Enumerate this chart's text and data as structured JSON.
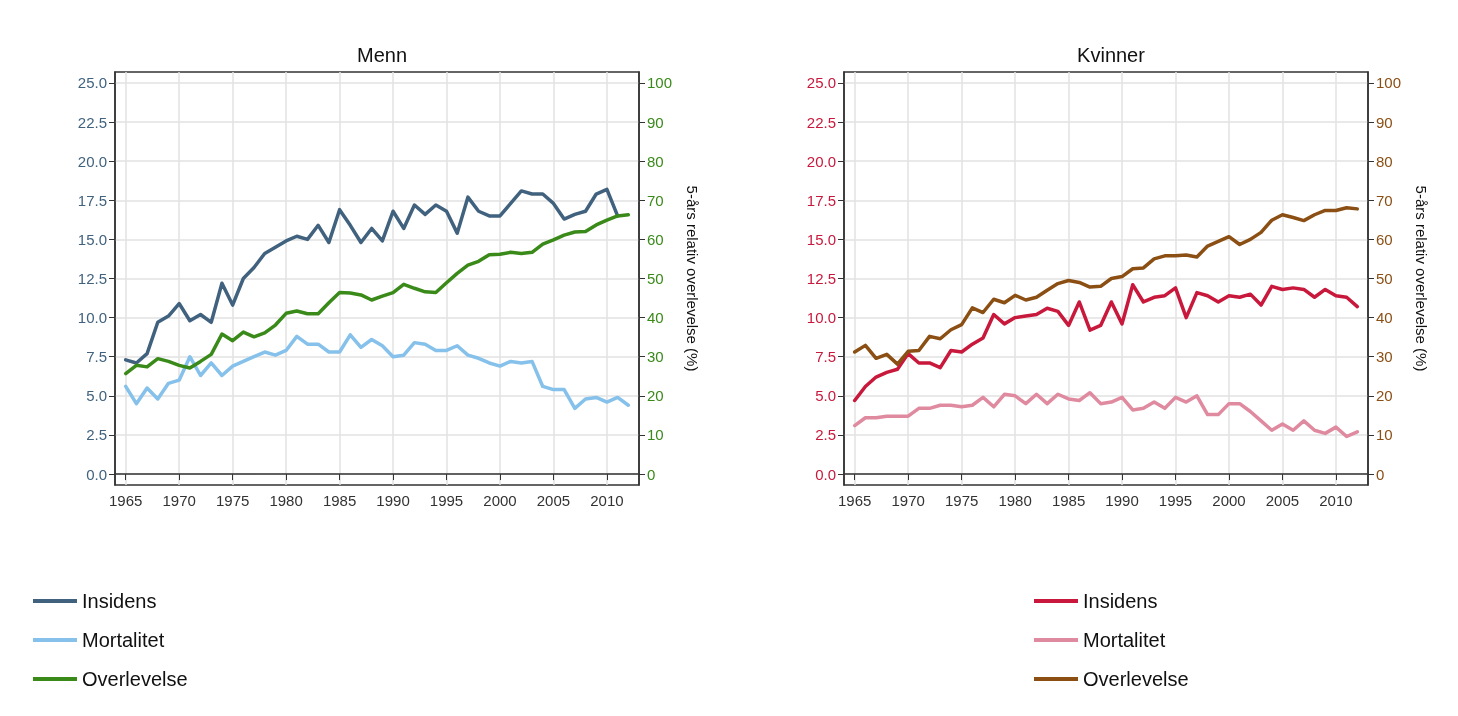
{
  "chart_data": [
    {
      "type": "line",
      "title": "Menn",
      "y2label": "5-års relativ overlevelse (%)",
      "x": [
        1965,
        1966,
        1967,
        1968,
        1969,
        1970,
        1971,
        1972,
        1973,
        1974,
        1975,
        1976,
        1977,
        1978,
        1979,
        1980,
        1981,
        1982,
        1983,
        1984,
        1985,
        1986,
        1987,
        1988,
        1989,
        1990,
        1991,
        1992,
        1993,
        1994,
        1995,
        1996,
        1997,
        1998,
        1999,
        2000,
        2001,
        2002,
        2003,
        2004,
        2005,
        2006,
        2007,
        2008,
        2009,
        2010,
        2011,
        2012
      ],
      "series": [
        {
          "name": "Insidens",
          "color": "#41627e",
          "values": [
            7.3,
            7.1,
            7.7,
            9.7,
            10.1,
            10.9,
            9.8,
            10.2,
            9.7,
            12.2,
            10.8,
            12.5,
            13.2,
            14.1,
            14.5,
            14.9,
            15.2,
            15.0,
            15.9,
            14.8,
            16.9,
            15.9,
            14.8,
            15.7,
            14.9,
            16.8,
            15.7,
            17.2,
            16.6,
            17.2,
            16.8,
            15.4,
            17.7,
            16.8,
            16.5,
            16.5,
            17.3,
            18.1,
            17.9,
            17.9,
            17.3,
            16.3,
            16.6,
            16.8,
            17.9,
            18.2,
            16.5,
            null
          ]
        },
        {
          "name": "Mortalitet",
          "color": "#85c1ea",
          "values": [
            5.6,
            4.5,
            5.5,
            4.8,
            5.8,
            6.0,
            7.5,
            6.3,
            7.1,
            6.3,
            6.9,
            7.2,
            7.5,
            7.8,
            7.6,
            7.9,
            8.8,
            8.3,
            8.3,
            7.8,
            7.8,
            8.9,
            8.1,
            8.6,
            8.2,
            7.5,
            7.6,
            8.4,
            8.3,
            7.9,
            7.9,
            8.2,
            7.6,
            7.4,
            7.1,
            6.9,
            7.2,
            7.1,
            7.2,
            5.6,
            5.4,
            5.4,
            4.2,
            4.8,
            4.9,
            4.6,
            4.9,
            4.4
          ]
        },
        {
          "name": "Overlevelse",
          "color": "#3a8a1a",
          "axis": "y2",
          "values": [
            25.7,
            27.8,
            27.4,
            29.5,
            28.8,
            27.8,
            27.1,
            28.8,
            30.6,
            35.8,
            34.1,
            36.3,
            35.1,
            36.1,
            38.1,
            41.1,
            41.7,
            41.0,
            41.0,
            43.8,
            46.4,
            46.3,
            45.8,
            44.5,
            45.5,
            46.4,
            48.5,
            47.5,
            46.6,
            46.4,
            48.9,
            51.3,
            53.4,
            54.4,
            56.1,
            56.2,
            56.7,
            56.4,
            56.7,
            58.8,
            59.9,
            61.1,
            61.9,
            62.0,
            63.7,
            64.9,
            66.0,
            66.3
          ]
        }
      ],
      "xlim": [
        1964,
        2013
      ],
      "xticks": [
        1965,
        1970,
        1975,
        1980,
        1985,
        1990,
        1995,
        2000,
        2005,
        2010
      ],
      "ylim": [
        -0.7,
        25.7
      ],
      "yticks": [
        {
          "value": 0,
          "label": "0.0"
        },
        {
          "value": 2.5,
          "label": "2.5"
        },
        {
          "value": 5,
          "label": "5.0"
        },
        {
          "value": 7.5,
          "label": "7.5"
        },
        {
          "value": 10,
          "label": "10.0"
        },
        {
          "value": 12.5,
          "label": "12.5"
        },
        {
          "value": 15,
          "label": "15.0"
        },
        {
          "value": 17.5,
          "label": "17.5"
        },
        {
          "value": 20,
          "label": "20.0"
        },
        {
          "value": 22.5,
          "label": "22.5"
        },
        {
          "value": 25,
          "label": "25.0"
        }
      ],
      "y2lim": [
        -2.8,
        102.8
      ],
      "y2ticks": [
        0,
        10,
        20,
        30,
        40,
        50,
        60,
        70,
        80,
        90,
        100
      ],
      "grid": true,
      "legend": "bottom left",
      "marker": "none",
      "line_style": "solid"
    },
    {
      "type": "line",
      "title": "Kvinner",
      "y2label": "5-års relativ overlevelse (%)",
      "x": [
        1965,
        1966,
        1967,
        1968,
        1969,
        1970,
        1971,
        1972,
        1973,
        1974,
        1975,
        1976,
        1977,
        1978,
        1979,
        1980,
        1981,
        1982,
        1983,
        1984,
        1985,
        1986,
        1987,
        1988,
        1989,
        1990,
        1991,
        1992,
        1993,
        1994,
        1995,
        1996,
        1997,
        1998,
        1999,
        2000,
        2001,
        2002,
        2003,
        2004,
        2005,
        2006,
        2007,
        2008,
        2009,
        2010,
        2011,
        2012
      ],
      "series": [
        {
          "name": "Insidens",
          "color": "#c8193c",
          "values": [
            4.7,
            5.6,
            6.2,
            6.5,
            6.7,
            7.7,
            7.1,
            7.1,
            6.8,
            7.9,
            7.8,
            8.3,
            8.7,
            10.2,
            9.6,
            10.0,
            10.1,
            10.2,
            10.6,
            10.4,
            9.5,
            11.0,
            9.2,
            9.5,
            11.0,
            9.6,
            12.1,
            11.0,
            11.3,
            11.4,
            11.9,
            10.0,
            11.6,
            11.4,
            11.0,
            11.4,
            11.3,
            11.5,
            10.8,
            12.0,
            11.8,
            11.9,
            11.8,
            11.3,
            11.8,
            11.4,
            11.3,
            10.7
          ]
        },
        {
          "name": "Mortalitet",
          "color": "#e08aa0",
          "values": [
            3.1,
            3.6,
            3.6,
            3.7,
            3.7,
            3.7,
            4.2,
            4.2,
            4.4,
            4.4,
            4.3,
            4.4,
            4.9,
            4.3,
            5.1,
            5.0,
            4.5,
            5.1,
            4.5,
            5.1,
            4.8,
            4.7,
            5.2,
            4.5,
            4.6,
            4.9,
            4.1,
            4.2,
            4.6,
            4.2,
            4.9,
            4.6,
            5.0,
            3.8,
            3.8,
            4.5,
            4.5,
            4.0,
            3.4,
            2.8,
            3.2,
            2.8,
            3.4,
            2.8,
            2.6,
            3.0,
            2.4,
            2.7
          ]
        },
        {
          "name": "Overlevelse",
          "color": "#8b4f14",
          "axis": "y2",
          "values": [
            31.2,
            32.9,
            29.6,
            30.6,
            28.1,
            31.4,
            31.6,
            35.2,
            34.6,
            36.9,
            38.2,
            42.5,
            41.3,
            44.7,
            43.8,
            45.7,
            44.5,
            45.2,
            47.0,
            48.7,
            49.5,
            49.0,
            47.8,
            48.0,
            50.0,
            50.5,
            52.5,
            52.7,
            55.0,
            55.8,
            55.8,
            56.0,
            55.5,
            58.3,
            59.5,
            60.7,
            58.7,
            60.0,
            61.8,
            64.9,
            66.3,
            65.6,
            64.8,
            66.3,
            67.4,
            67.4,
            68.1,
            67.8
          ]
        }
      ],
      "xlim": [
        1964,
        2013
      ],
      "xticks": [
        1965,
        1970,
        1975,
        1980,
        1985,
        1990,
        1995,
        2000,
        2005,
        2010
      ],
      "ylim": [
        -0.7,
        25.7
      ],
      "yticks": [
        {
          "value": 0,
          "label": "0.0"
        },
        {
          "value": 2.5,
          "label": "2.5"
        },
        {
          "value": 5,
          "label": "5.0"
        },
        {
          "value": 7.5,
          "label": "7.5"
        },
        {
          "value": 10,
          "label": "10.0"
        },
        {
          "value": 12.5,
          "label": "12.5"
        },
        {
          "value": 15,
          "label": "15.0"
        },
        {
          "value": 17.5,
          "label": "17.5"
        },
        {
          "value": 20,
          "label": "20.0"
        },
        {
          "value": 22.5,
          "label": "22.5"
        },
        {
          "value": 25,
          "label": "25.0"
        }
      ],
      "y2lim": [
        -2.8,
        102.8
      ],
      "y2ticks": [
        0,
        10,
        20,
        30,
        40,
        50,
        60,
        70,
        80,
        90,
        100
      ],
      "grid": true,
      "legend": "bottom left",
      "marker": "none",
      "line_style": "solid"
    }
  ]
}
